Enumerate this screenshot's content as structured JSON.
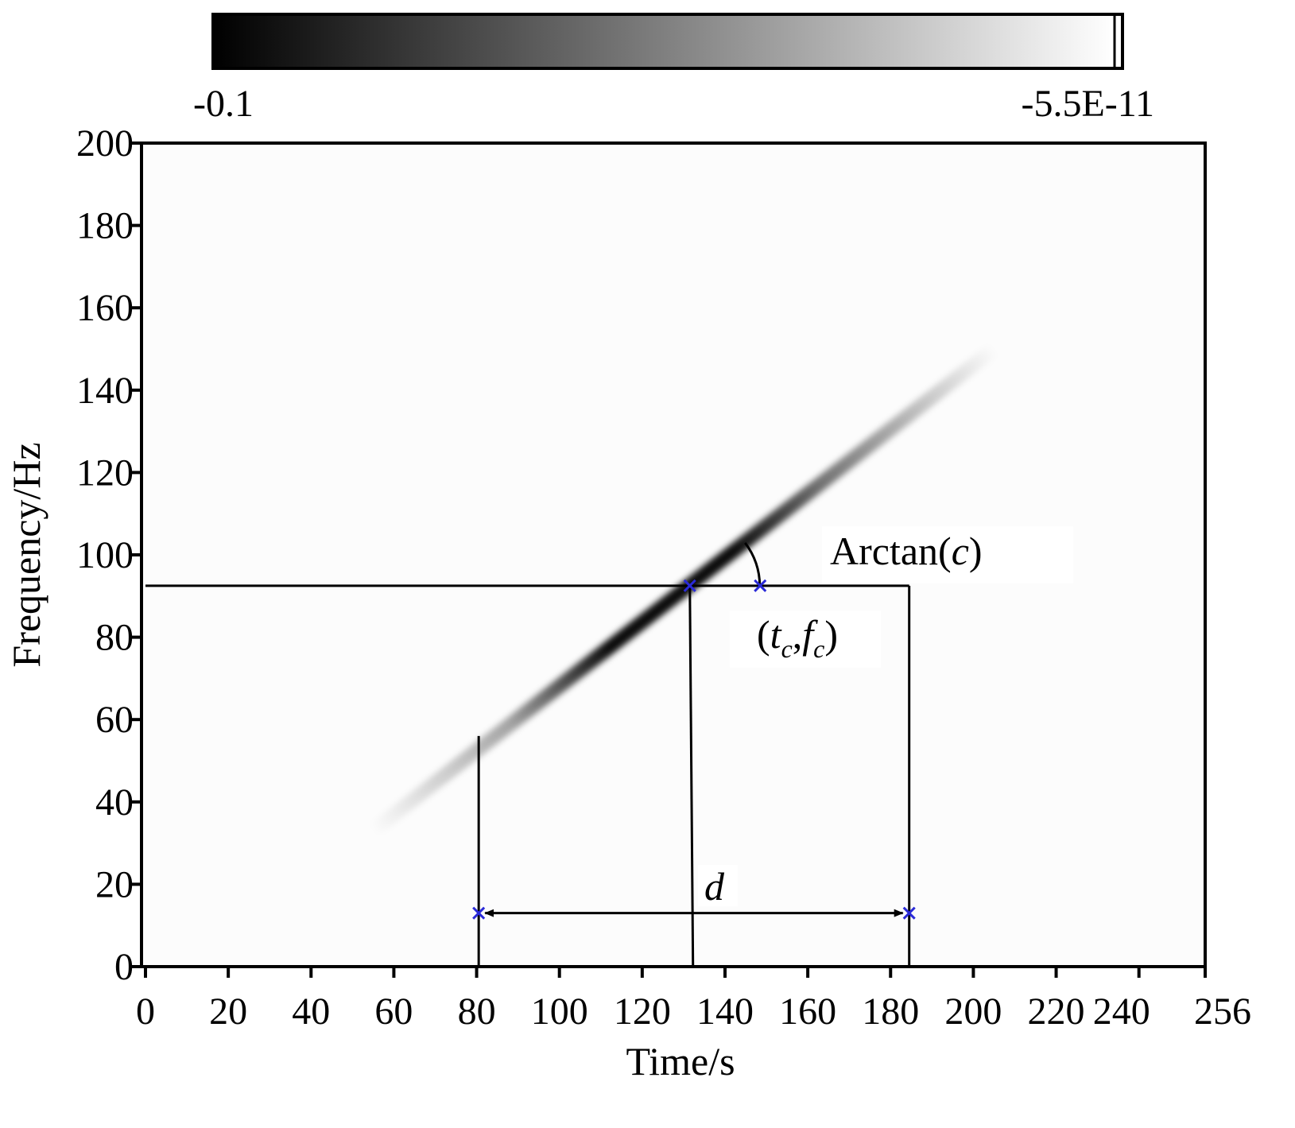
{
  "chart_data": {
    "type": "heatmap",
    "title": "",
    "xlabel": "Time/s",
    "ylabel": "Frequency/Hz",
    "xlim": [
      0,
      256
    ],
    "ylim": [
      0,
      200
    ],
    "x_ticks": [
      0,
      20,
      40,
      60,
      80,
      100,
      120,
      140,
      160,
      180,
      200,
      220,
      240,
      256
    ],
    "y_ticks": [
      0,
      20,
      40,
      60,
      80,
      100,
      120,
      140,
      160,
      180,
      200
    ],
    "colorbar": {
      "min_label": "-0.1",
      "max_label": "-5.5E-11",
      "colors": [
        "#000000",
        "#ffffff"
      ]
    },
    "chirp": {
      "center": [
        131.5,
        92.5
      ],
      "start": [
        55,
        33
      ],
      "end": [
        205,
        150
      ]
    },
    "markers": [
      {
        "t": 131.5,
        "f": 92.5
      },
      {
        "t": 148.5,
        "f": 92.5
      },
      {
        "t": 80.5,
        "f": 13
      },
      {
        "t": 184.5,
        "f": 13
      }
    ],
    "guide_lines": {
      "horizontal_f": 92.5,
      "horizontal_t_end": 184.5,
      "vertical_left_t": 80.5,
      "vertical_left_top_f": 56,
      "vertical_center_t": 131.5,
      "vertical_right_t": 184.5,
      "arrow_f": 13
    },
    "annotations": {
      "angle": {
        "prefix": "Arctan(",
        "var": "c",
        "suffix": ")"
      },
      "point": {
        "open": "(",
        "t": "t",
        "sub1": "c",
        "comma": ",",
        "f": "f",
        "sub2": "c",
        "close": ")"
      },
      "distance": "d"
    },
    "grid": false,
    "legend": "none"
  }
}
